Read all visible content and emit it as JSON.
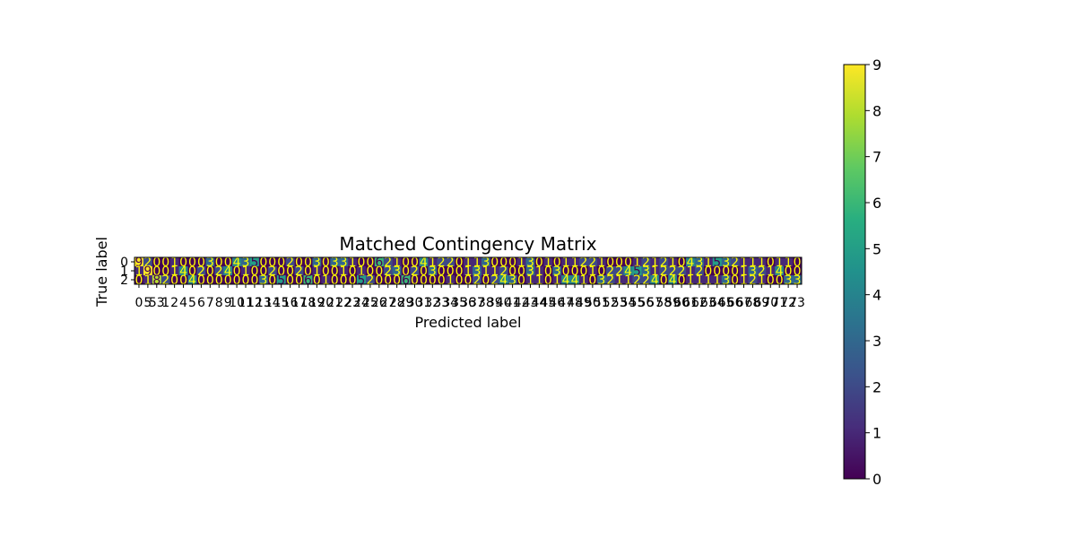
{
  "chart_data": {
    "type": "heatmap",
    "title": "Matched Contingency Matrix",
    "xlabel": "Predicted label",
    "ylabel": "True label",
    "y_categories": [
      "0",
      "1",
      "2"
    ],
    "x_categories": [
      "0",
      "5",
      "53",
      "1",
      "2",
      "4",
      "5",
      "6",
      "7",
      "8",
      "9",
      "10",
      "11",
      "12",
      "13",
      "14",
      "15",
      "16",
      "17",
      "18",
      "19",
      "20",
      "21",
      "22",
      "23",
      "24",
      "25",
      "26",
      "27",
      "28",
      "29",
      "30",
      "31",
      "32",
      "33",
      "34",
      "35",
      "36",
      "37",
      "38",
      "39",
      "40",
      "41",
      "42",
      "43",
      "44",
      "45",
      "46",
      "47",
      "48",
      "49",
      "50",
      "51",
      "52",
      "53",
      "54",
      "55",
      "56",
      "57",
      "58",
      "59",
      "60",
      "61",
      "62",
      "63",
      "64",
      "65",
      "66",
      "67",
      "68",
      "69",
      "70",
      "71",
      "72",
      "73"
    ],
    "values": [
      [
        9,
        2,
        0,
        0,
        1,
        0,
        0,
        0,
        3,
        0,
        0,
        4,
        3,
        5,
        0,
        0,
        0,
        2,
        0,
        0,
        3,
        0,
        3,
        3,
        1,
        0,
        0,
        6,
        2,
        1,
        0,
        0,
        4,
        1,
        2,
        2,
        0,
        1,
        1,
        3,
        0,
        0,
        0,
        1,
        3,
        0,
        1,
        0,
        1,
        1,
        2,
        2,
        1,
        0,
        0,
        0,
        1,
        2,
        1,
        2,
        1,
        0,
        4,
        3,
        1,
        5,
        3,
        2,
        1,
        1,
        1,
        0,
        1,
        1,
        0
      ],
      [
        1,
        9,
        0,
        0,
        1,
        4,
        0,
        2,
        0,
        2,
        4,
        0,
        1,
        0,
        0,
        2,
        0,
        0,
        2,
        0,
        1,
        0,
        0,
        1,
        0,
        1,
        0,
        0,
        2,
        3,
        0,
        2,
        0,
        3,
        0,
        0,
        0,
        1,
        3,
        1,
        1,
        2,
        0,
        0,
        3,
        1,
        0,
        3,
        0,
        0,
        0,
        1,
        0,
        2,
        2,
        4,
        5,
        3,
        1,
        2,
        2,
        2,
        1,
        2,
        0,
        0,
        0,
        0,
        1,
        3,
        2,
        1,
        4,
        0,
        0
      ],
      [
        0,
        1,
        8,
        2,
        0,
        0,
        4,
        0,
        0,
        0,
        0,
        0,
        0,
        0,
        3,
        0,
        5,
        0,
        0,
        6,
        0,
        1,
        0,
        0,
        0,
        5,
        2,
        0,
        0,
        0,
        6,
        0,
        0,
        0,
        0,
        1,
        0,
        0,
        2,
        0,
        2,
        4,
        3,
        0,
        1,
        1,
        0,
        1,
        4,
        4,
        1,
        0,
        3,
        2,
        1,
        1,
        2,
        2,
        4,
        0,
        4,
        0,
        1,
        1,
        1,
        1,
        3,
        0,
        1,
        2,
        1,
        0,
        0,
        3,
        3
      ]
    ],
    "vmin": 0,
    "vmax": 9,
    "colorbar_ticks": [
      "0",
      "1",
      "2",
      "3",
      "4",
      "5",
      "6",
      "7",
      "8",
      "9"
    ],
    "colormap": "viridis",
    "text_color_dark": "#ffff00",
    "text_color_light": "#440154"
  }
}
